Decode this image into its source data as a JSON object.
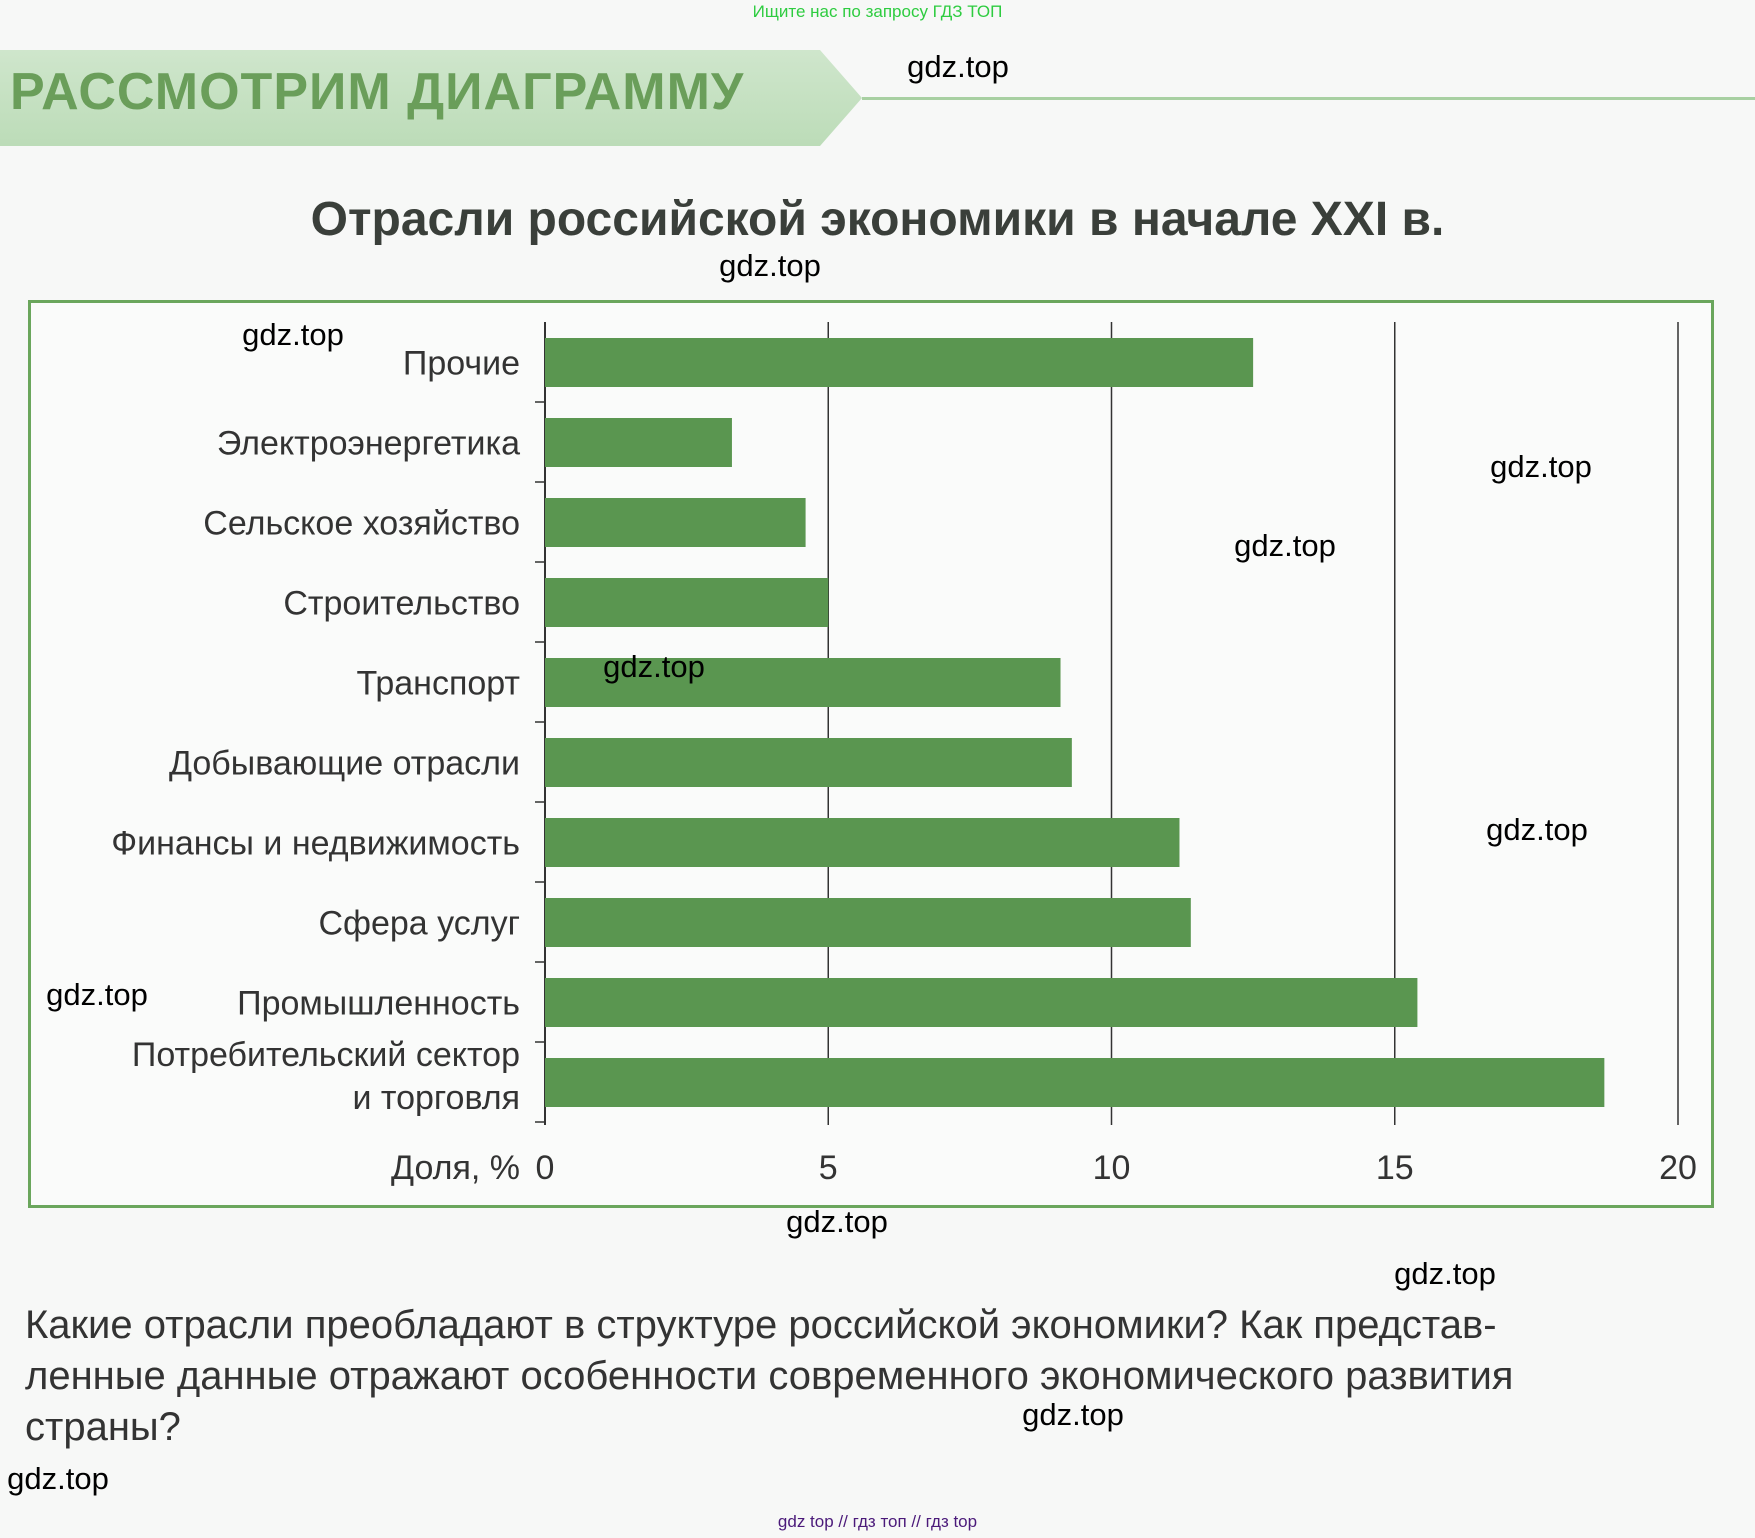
{
  "top_note": "Ищите нас по запросу ГДЗ ТОП",
  "section_title": "РАССМОТРИМ ДИАГРАММУ",
  "chart_data": {
    "type": "bar",
    "orientation": "horizontal",
    "title": "Отрасли российской экономики в начале XXI в.",
    "xlabel": "Доля, %",
    "ylabel": "",
    "xlim": [
      0,
      20
    ],
    "xticks": [
      "0",
      "5",
      "10",
      "15",
      "20"
    ],
    "grid": true,
    "categories": [
      "Прочие",
      "Электроэнергетика",
      "Сельское хозяйство",
      "Строительство",
      "Транспорт",
      "Добывающие отрасли",
      "Финансы и недвижимость",
      "Сфера услуг",
      "Промышленность",
      [
        "Потребительский сектор",
        "и торговля"
      ]
    ],
    "values": [
      12.5,
      3.3,
      4.6,
      5.0,
      9.1,
      9.3,
      11.2,
      11.4,
      15.4,
      18.7
    ],
    "bar_color": "#5a9650"
  },
  "question": "Какие отрасли преобладают в структуре российской экономики? Как представ-ленные данные отражают особенности современного экономического развития страны?",
  "question_lines": [
    "Какие отрасли преобладают в структуре российской экономики? Как представ-",
    "ленные данные отражают особенности современного экономического развития",
    "страны?"
  ],
  "watermark": "gdz.top",
  "footer": "gdz top  //  гдз топ  //  гдз top"
}
